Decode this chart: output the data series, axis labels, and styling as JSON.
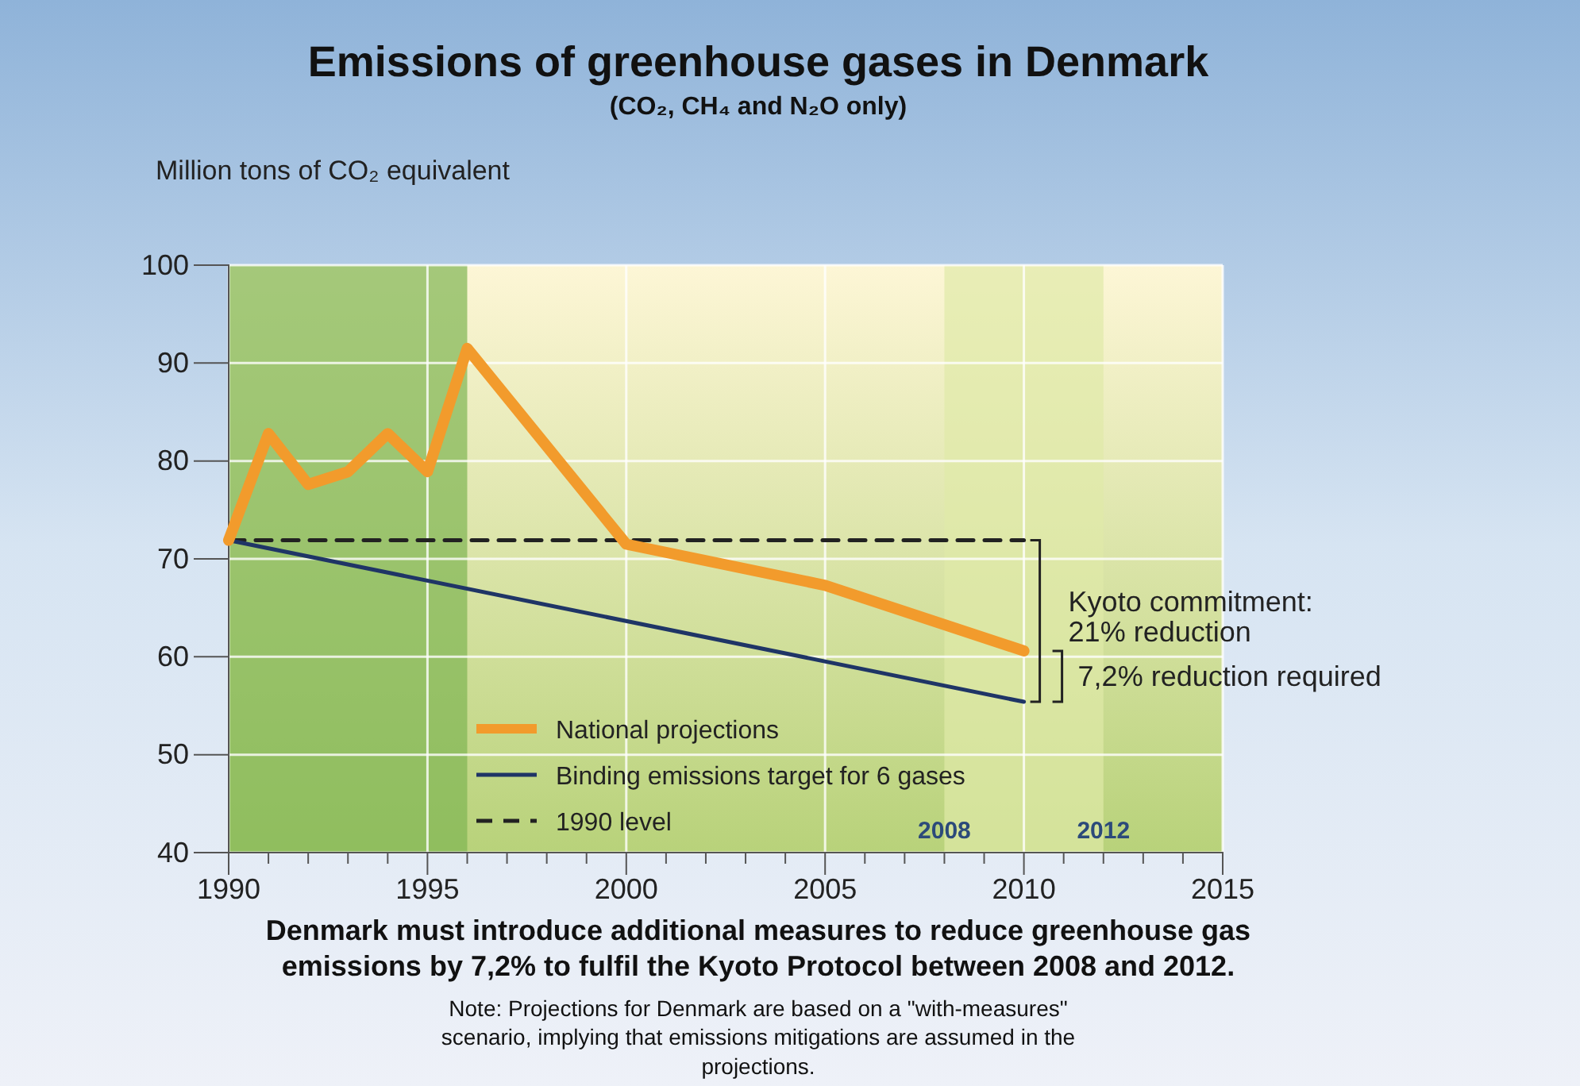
{
  "chart_data": {
    "type": "line",
    "title": "Emissions of greenhouse gases in Denmark",
    "subtitle": "(CO₂, CH₄ and N₂O only)",
    "ylabel": "Million tons of CO₂ equivalent",
    "xlim": [
      1990,
      2015
    ],
    "xticks": [
      1990,
      {
        "value": 1991,
        "label": null
      },
      {
        "value": 1992,
        "label": null
      },
      {
        "value": 1993,
        "label": null
      },
      {
        "value": 1994,
        "label": null
      },
      1995,
      {
        "value": 1996,
        "label": null
      },
      {
        "value": 1997,
        "label": null
      },
      {
        "value": 1998,
        "label": null
      },
      {
        "value": 1999,
        "label": null
      },
      2000,
      {
        "value": 2001,
        "label": null
      },
      {
        "value": 2002,
        "label": null
      },
      {
        "value": 2003,
        "label": null
      },
      {
        "value": 2004,
        "label": null
      },
      2005,
      {
        "value": 2006,
        "label": null
      },
      {
        "value": 2007,
        "label": null
      },
      {
        "value": 2008,
        "label": null
      },
      {
        "value": 2009,
        "label": null
      },
      2010,
      {
        "value": 2011,
        "label": null
      },
      {
        "value": 2012,
        "label": null
      },
      {
        "value": 2013,
        "label": null
      },
      {
        "value": 2014,
        "label": null
      },
      2015
    ],
    "ylim": [
      40,
      100
    ],
    "yticks": [
      40,
      50,
      60,
      70,
      80,
      90,
      100
    ],
    "grid": true,
    "legend": "bottom",
    "series": [
      {
        "name": "National projections",
        "color": "#f29b2c",
        "x": [
          1990,
          1991,
          1992,
          1993,
          1994,
          1995,
          1996,
          2000,
          2005,
          2010
        ],
        "values": [
          71.9,
          82.8,
          77.6,
          78.9,
          82.8,
          78.9,
          91.5,
          71.5,
          67.3,
          60.6
        ]
      },
      {
        "name": "Binding emissions target for 6 gases",
        "color": "#1f3566",
        "x": [
          1990,
          2010
        ],
        "values": [
          71.9,
          55.4
        ]
      },
      {
        "name": "1990 level",
        "color": "#222222",
        "line_style": "dashed",
        "x": [
          1990,
          2010
        ],
        "values": [
          71.9,
          71.9
        ]
      }
    ],
    "bands": [
      {
        "axis": "x",
        "from": 1990,
        "to": 1996,
        "color": "#7fb552"
      },
      {
        "axis": "x",
        "from": 2008,
        "to": 2012,
        "color": "#dfe9a8"
      }
    ],
    "annotations": [
      {
        "text": "2008",
        "x": 2008,
        "y": 41.5
      },
      {
        "text": "2012",
        "x": 2012,
        "y": 41.5
      },
      "Kyoto commitment: 21% reduction",
      "7,2% reduction required",
      "Denmark must introduce additional measures to reduce greenhouse gas emissions by 7,2% to fulfil the Kyoto Protocol between 2008 and 2012.",
      "Note: Projections for Denmark are based on a \"with-measures\" scenario, implying that emissions mitigations are assumed in the projections."
    ]
  }
}
